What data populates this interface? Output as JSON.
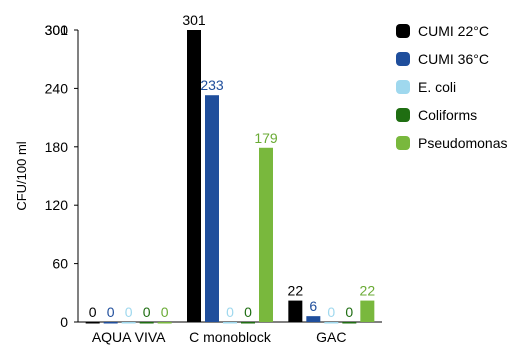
{
  "chart_data": {
    "type": "bar",
    "ylabel": "CFU/100 ml",
    "xlabel": "",
    "ylim": [
      0,
      300
    ],
    "yticks": [
      0,
      60,
      120,
      180,
      240,
      300
    ],
    "yticks_overlap_label": "301",
    "grid": false,
    "legend_position": "right",
    "categories": [
      "AQUA VIVA",
      "C monoblock",
      "GAC"
    ],
    "series": [
      {
        "name": "CUMI 22°C",
        "color": "#000000",
        "values": [
          0,
          301,
          22
        ],
        "labels": [
          "0",
          "301",
          "22"
        ],
        "label_color": "#000000"
      },
      {
        "name": "CUMI 36°C",
        "color": "#1f4e9c",
        "values": [
          0,
          233,
          6
        ],
        "labels": [
          "0",
          "233",
          "6"
        ],
        "label_color": "#1f4e9c"
      },
      {
        "name": "E. coli",
        "color": "#9fd8ee",
        "values": [
          0,
          0,
          0
        ],
        "labels": [
          "0",
          "0",
          "0"
        ],
        "label_color": "#9fd8ee"
      },
      {
        "name": "Coliforms",
        "color": "#1f6e12",
        "values": [
          0,
          0,
          0
        ],
        "labels": [
          "0",
          "0",
          "0"
        ],
        "label_color": "#1f6e12"
      },
      {
        "name": "Pseudomonas",
        "color": "#79b83d",
        "values": [
          0,
          179,
          22
        ],
        "labels": [
          "0",
          "179",
          "22"
        ],
        "label_color": "#6aab35"
      }
    ]
  }
}
